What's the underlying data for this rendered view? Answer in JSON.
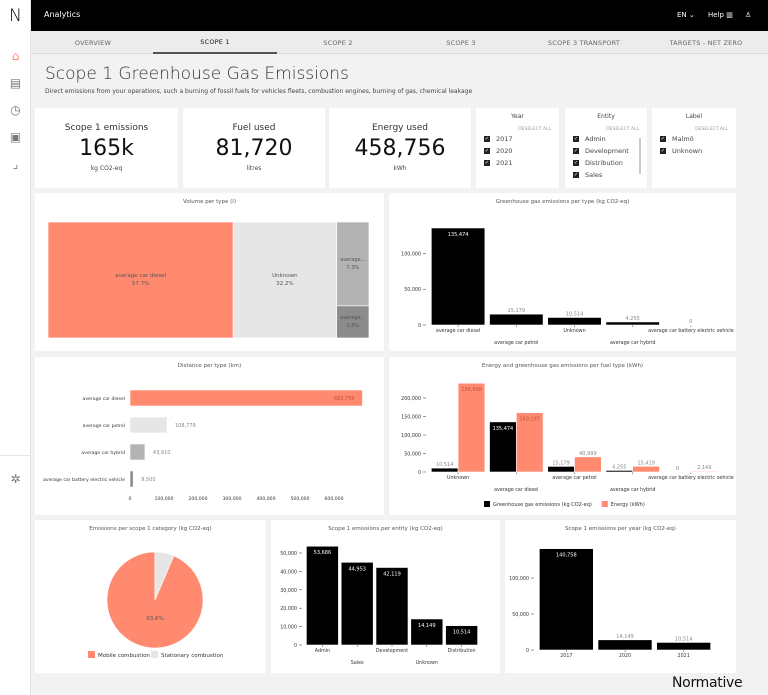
{
  "app": {
    "logo": "N",
    "title": "Analytics",
    "language": "EN",
    "help": "Help",
    "icons": {
      "language": "chevron-down-icon",
      "help": "book-icon",
      "user": "user-icon"
    }
  },
  "sidebar": {
    "items": [
      {
        "icon": "home-icon",
        "active": true
      },
      {
        "icon": "calculator-icon"
      },
      {
        "icon": "pie-chart-icon"
      },
      {
        "icon": "document-icon"
      },
      {
        "icon": "scatter-icon"
      }
    ],
    "settings_icon": "gear-icon"
  },
  "tabs": [
    {
      "label": "OVERVIEW"
    },
    {
      "label": "SCOPE 1",
      "active": true
    },
    {
      "label": "SCOPE 2"
    },
    {
      "label": "SCOPE 3"
    },
    {
      "label": "SCOPE 3 TRANSPORT"
    },
    {
      "label": "TARGETS - NET ZERO"
    }
  ],
  "page": {
    "title": "Scope 1 Greenhouse Gas Emissions",
    "subtitle": "Direct emissions from your operations, such a burning of fossil fuels for vehicles fleets, combustion engines, burning of gas, chemical leakage"
  },
  "kpis": [
    {
      "label": "Scope 1 emissions",
      "value": "165k",
      "unit": "kg CO2-eq"
    },
    {
      "label": "Fuel used",
      "value": "81,720",
      "unit": "litres"
    },
    {
      "label": "Energy used",
      "value": "458,756",
      "unit": "kWh"
    }
  ],
  "filters": [
    {
      "title": "Year",
      "deselect": "DESELECT ALL",
      "items": [
        "2017",
        "2020",
        "2021"
      ]
    },
    {
      "title": "Entity",
      "deselect": "DESELECT ALL",
      "items": [
        "Admin",
        "Development",
        "Distribution",
        "Sales"
      ]
    },
    {
      "title": "Label",
      "deselect": "DESELECT ALL",
      "items": [
        "Malmö",
        "Unknown"
      ]
    }
  ],
  "colors": {
    "accent": "#ff8a70",
    "bar": "#000000",
    "light": "#e6e6e6",
    "mid": "#b3b3b3",
    "dark": "#8c8c8c"
  },
  "brand": "Normative",
  "chart_data": [
    {
      "type": "treemap",
      "title": "Volume per type (l)",
      "items": [
        {
          "label": "average car diesel",
          "percent_label": "57.7%",
          "value": 57.7
        },
        {
          "label": "Unknown",
          "percent_label": "32.2%",
          "value": 32.2
        },
        {
          "label": "average...",
          "percent_label": "7.3%",
          "value": 7.3
        },
        {
          "label": "average...",
          "percent_label": "2.8%",
          "value": 2.8
        }
      ]
    },
    {
      "type": "bar",
      "title": "Greenhouse gas emissions per type (kg CO2-eq)",
      "categories": [
        "average car diesel",
        "average car petrol",
        "Unknown",
        "average car hybrid",
        "average car battery electric vehicle"
      ],
      "series": [
        {
          "values": [
            135474,
            15179,
            10514,
            4255,
            0
          ],
          "labels": [
            "135,474",
            "15,179",
            "10,514",
            "4,255",
            "0"
          ]
        }
      ],
      "yticks": [
        0,
        50000,
        100000
      ],
      "ytick_labels": [
        "0",
        "50,000",
        "100,000"
      ],
      "ylim": [
        0,
        140000
      ]
    },
    {
      "type": "bar",
      "orientation": "horizontal",
      "title": "Distance per type (km)",
      "categories": [
        "average car diesel",
        "average car petrol",
        "average car hybrid",
        "average car battery electric vehicle"
      ],
      "values": [
        683759,
        108779,
        43910,
        9500
      ],
      "labels": [
        "683,759",
        "108,779",
        "43,910",
        "9,500"
      ],
      "xticks": [
        0,
        100000,
        200000,
        300000,
        400000,
        500000,
        600000
      ],
      "xtick_labels": [
        "0",
        "100,000",
        "200,000",
        "300,000",
        "400,000",
        "500,000",
        "600,000"
      ],
      "xlim": [
        0,
        683759
      ]
    },
    {
      "type": "bar",
      "title": "Energy and greenhouse gas emissions per fuel type (kWh)",
      "categories": [
        "Unknown",
        "average car diesel",
        "average car petrol",
        "average car hybrid",
        "average car battery electric vehicle"
      ],
      "series": [
        {
          "name": "Greenhouse gas emissions (kg CO2-eq)",
          "values": [
            10514,
            135474,
            15179,
            4255,
            0
          ],
          "labels": [
            "10,514",
            "135,474",
            "15,179",
            "4,255",
            "0"
          ],
          "color": "#000000"
        },
        {
          "name": "Energy (kWh)",
          "values": [
            239998,
            160297,
            40999,
            15419,
            2149
          ],
          "labels": [
            "239,998",
            "160,297",
            "40,999",
            "15,419",
            "2,149"
          ],
          "color": "#ff8a70"
        }
      ],
      "yticks": [
        0,
        50000,
        100000,
        150000,
        200000
      ],
      "ytick_labels": [
        "0",
        "50,000",
        "100,000",
        "150,000",
        "200,000"
      ],
      "ylim": [
        0,
        250000
      ],
      "legend": "bottom"
    },
    {
      "type": "pie",
      "title": "Emissions per scope 1 category  (kg CO2-eq)",
      "slices": [
        {
          "name": "Mobile combustion",
          "value": 93.6,
          "label": "93.6%",
          "color": "#ff8a70"
        },
        {
          "name": "Stationary combustion",
          "value": 6.4,
          "label": "",
          "color": "#e6e6e6"
        }
      ],
      "legend": "bottom"
    },
    {
      "type": "bar",
      "title": "Scope 1 emissions per entity (kg CO2-eq)",
      "categories": [
        "Admin",
        "Sales",
        "Development",
        "Unknown",
        "Distribution"
      ],
      "series": [
        {
          "values": [
            53686,
            44953,
            42119,
            14149,
            10514
          ],
          "labels": [
            "53,686",
            "44,953",
            "42,119",
            "14,149",
            "10,514"
          ]
        }
      ],
      "yticks": [
        0,
        10000,
        20000,
        30000,
        40000,
        50000
      ],
      "ytick_labels": [
        "0",
        "10,000",
        "20,000",
        "30,000",
        "40,000",
        "50,000"
      ],
      "ylim": [
        0,
        54500
      ]
    },
    {
      "type": "bar",
      "title": "Scope 1 emissions per year (kg CO2-eq)",
      "categories": [
        "2017",
        "2020",
        "2021"
      ],
      "series": [
        {
          "values": [
            140758,
            14149,
            10514
          ],
          "labels": [
            "140,758",
            "14,149",
            "10,514"
          ]
        }
      ],
      "yticks": [
        0,
        50000,
        100000
      ],
      "ytick_labels": [
        "0",
        "50,000",
        "100,000"
      ],
      "ylim": [
        0,
        142000
      ]
    }
  ]
}
